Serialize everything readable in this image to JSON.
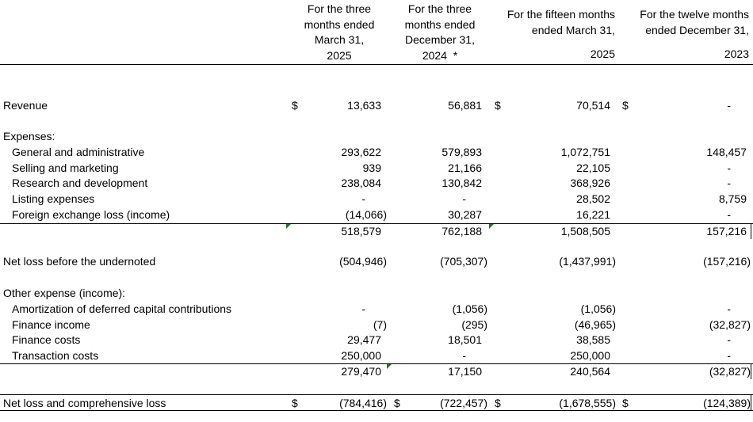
{
  "headers": [
    [
      "For the three",
      "months ended",
      "March 31,",
      "2025"
    ],
    [
      "For the three",
      "months ended",
      "December 31,",
      "2024  *"
    ],
    [
      "For the fifteen months",
      "ended March 31,",
      "2025"
    ],
    [
      "For the twelve months",
      "ended December 31,",
      "2023"
    ]
  ],
  "currency_symbol": "$",
  "rows": {
    "revenue": {
      "label": "Revenue",
      "values": [
        "13,633",
        "56,881",
        "70,514",
        "-"
      ]
    },
    "expenses_heading": {
      "label": "Expenses:"
    },
    "general_admin": {
      "label": "General and administrative",
      "values": [
        "293,622",
        "579,893",
        "1,072,751",
        "148,457"
      ]
    },
    "selling_marketing": {
      "label": "Selling and marketing",
      "values": [
        "939",
        "21,166",
        "22,105",
        "-"
      ]
    },
    "research_dev": {
      "label": "Research and development",
      "values": [
        "238,084",
        "130,842",
        "368,926",
        "-"
      ]
    },
    "listing_expenses": {
      "label": "Listing expenses",
      "values": [
        "-",
        "-",
        "28,502",
        "8,759"
      ]
    },
    "fx_loss": {
      "label": "Foreign exchange loss (income)",
      "values": [
        "(14,066)",
        "30,287",
        "16,221",
        "-"
      ]
    },
    "expenses_total": {
      "values": [
        "518,579",
        "762,188",
        "1,508,505",
        "157,216"
      ]
    },
    "net_loss_before": {
      "label": "Net loss before the undernoted",
      "values": [
        "(504,946)",
        "(705,307)",
        "(1,437,991)",
        "(157,216)"
      ]
    },
    "other_heading": {
      "label": "Other expense (income):"
    },
    "amortization": {
      "label": "Amortization of deferred capital contributions",
      "values": [
        "-",
        "(1,056)",
        "(1,056)",
        "-"
      ]
    },
    "finance_income": {
      "label": "Finance income",
      "values": [
        "(7)",
        "(295)",
        "(46,965)",
        "(32,827)"
      ]
    },
    "finance_costs": {
      "label": "Finance costs",
      "values": [
        "29,477",
        "18,501",
        "38,585",
        "-"
      ]
    },
    "transaction_costs": {
      "label": "Transaction costs",
      "values": [
        "250,000",
        "-",
        "250,000",
        "-"
      ]
    },
    "other_total": {
      "values": [
        "279,470",
        "17,150",
        "240,564",
        "(32,827)"
      ]
    },
    "net_loss_comprehensive": {
      "label": "Net loss and comprehensive loss",
      "values": [
        "(784,416)",
        "(722,457)",
        "(1,678,555)",
        "(124,389)"
      ]
    }
  }
}
